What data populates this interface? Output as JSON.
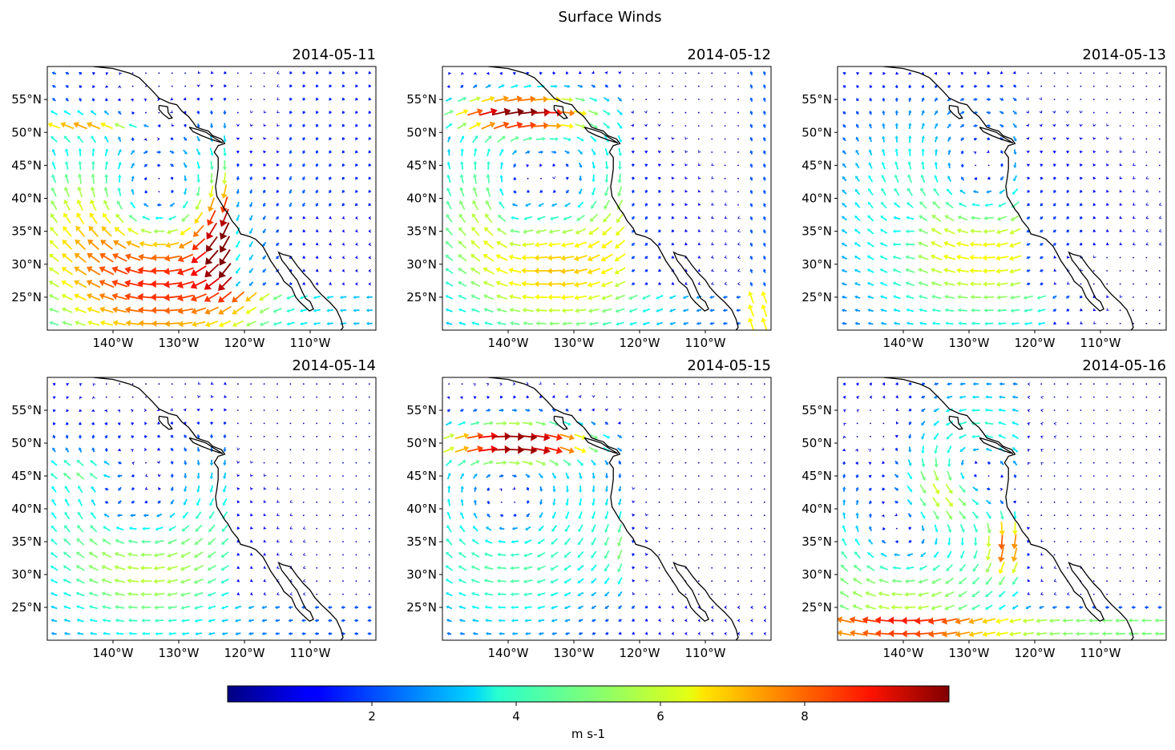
{
  "figure": {
    "title": "Surface Winds"
  },
  "chart_data": {
    "type": "quiver",
    "title": "Surface Winds",
    "colorbar": {
      "label": "m s-1",
      "ticks": [
        2,
        4,
        6,
        8
      ],
      "range": [
        0,
        10
      ],
      "colormap": "jet"
    },
    "axes": {
      "x_ticks": [
        -140,
        -130,
        -120,
        -110
      ],
      "x_tick_labels": [
        "140°W",
        "130°W",
        "120°W",
        "110°W"
      ],
      "y_ticks": [
        25,
        30,
        35,
        40,
        45,
        50,
        55
      ],
      "y_tick_labels": [
        "25°N",
        "30°N",
        "35°N",
        "40°N",
        "45°N",
        "50°N",
        "55°N"
      ],
      "lon_range": [
        -150,
        -100
      ],
      "lat_range": [
        20,
        60
      ]
    },
    "panels": [
      {
        "date": "2014-05-11",
        "pattern": "high pressure west of California; strong northerly jet along coast 120-130°W; strong easterly jet near 51°N west edge"
      },
      {
        "date": "2014-05-12",
        "pattern": "strong westerly flow 52-55°N near coast of British Columbia; northerly jet near 138°W; southerly flow east edge"
      },
      {
        "date": "2014-05-13",
        "pattern": "northerly core near 140°W 35°N; weak winds east of 130°W, stronger near Baja"
      },
      {
        "date": "2014-05-14",
        "pattern": "northerly core near 140°W 43°N; broad anticyclonic circulation"
      },
      {
        "date": "2014-05-15",
        "pattern": "strong westerly jet 47-51°N; southwesterly flow 40-45°N"
      },
      {
        "date": "2014-05-16",
        "pattern": "strong northerly jet near 125°W 32-40°N; cyclonic flow near 47°N"
      }
    ]
  }
}
